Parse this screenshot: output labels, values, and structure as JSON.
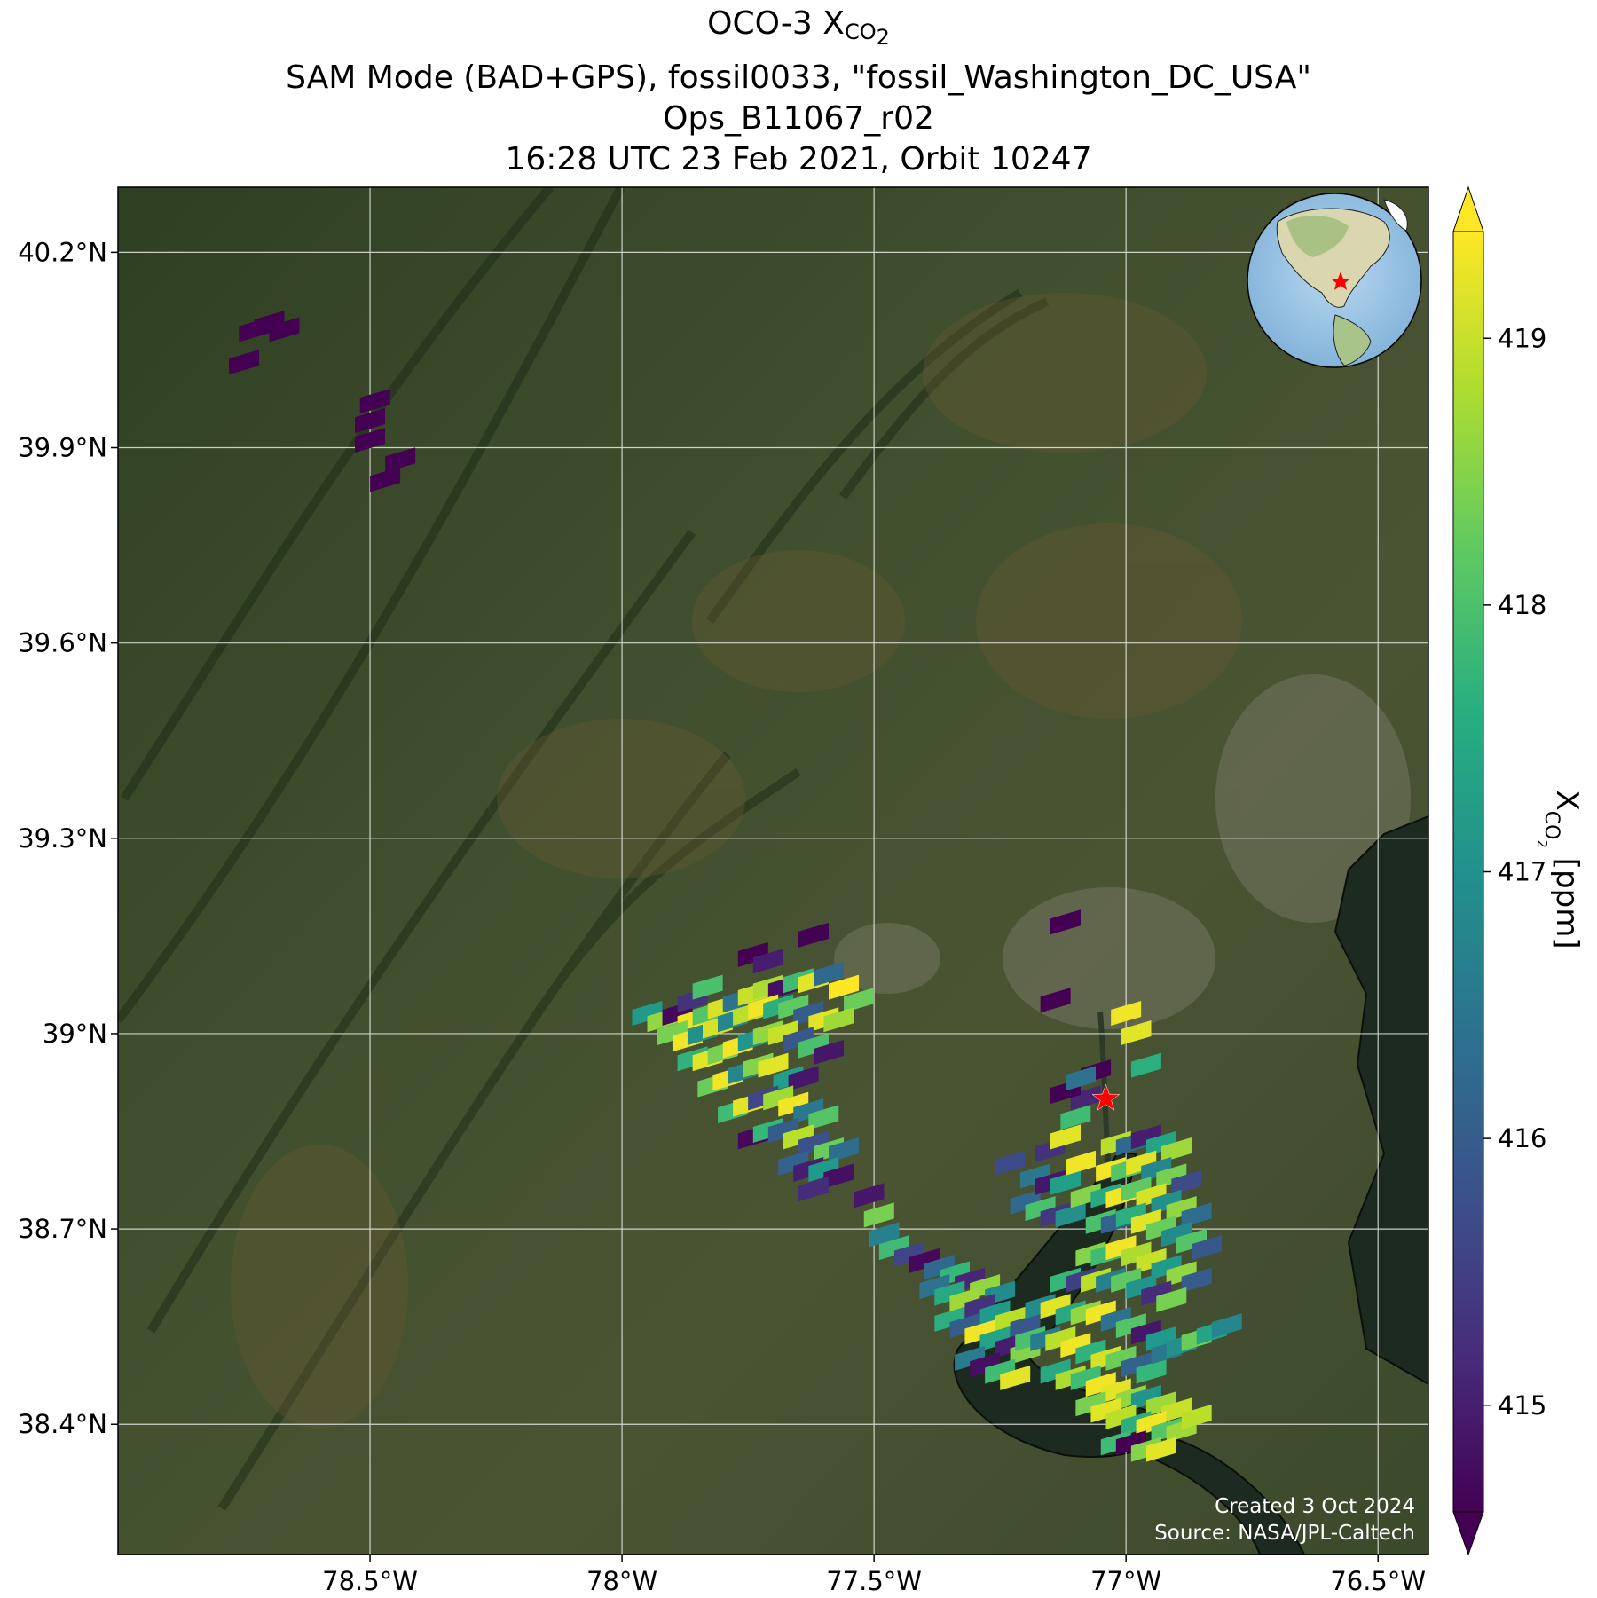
{
  "title": {
    "line1_prefix": "OCO-3 X",
    "line1_sub": "CO",
    "line1_sub2": "2",
    "line2": "SAM Mode (BAD+GPS), fossil0033, \"fossil_Washington_DC_USA\"",
    "line3": "Ops_B11067_r02",
    "line4": "16:28 UTC 23 Feb 2021, Orbit 10247"
  },
  "map": {
    "extent_lon": [
      -79.0,
      -76.4
    ],
    "extent_lat": [
      38.2,
      40.3
    ],
    "lon_ticks": [
      {
        "value": -78.5,
        "label": "78.5°W"
      },
      {
        "value": -78.0,
        "label": "78°W"
      },
      {
        "value": -77.5,
        "label": "77.5°W"
      },
      {
        "value": -77.0,
        "label": "77°W"
      },
      {
        "value": -76.5,
        "label": "76.5°W"
      }
    ],
    "lat_ticks": [
      {
        "value": 40.2,
        "label": "40.2°N"
      },
      {
        "value": 39.9,
        "label": "39.9°N"
      },
      {
        "value": 39.6,
        "label": "39.6°N"
      },
      {
        "value": 39.3,
        "label": "39.3°N"
      },
      {
        "value": 39.0,
        "label": "39°N"
      },
      {
        "value": 38.7,
        "label": "38.7°N"
      },
      {
        "value": 38.4,
        "label": "38.4°N"
      }
    ],
    "target_marker": {
      "lon": -77.04,
      "lat": 38.9,
      "color": "#ff0000",
      "icon": "star"
    },
    "credit_line1": "Created 3 Oct 2024",
    "credit_line2": "Source: NASA/JPL-Caltech",
    "inset": "globe-locator-icon"
  },
  "colorbar": {
    "min": 414.6,
    "max": 419.4,
    "ticks": [
      {
        "value": 415,
        "label": "415"
      },
      {
        "value": 416,
        "label": "416"
      },
      {
        "value": 417,
        "label": "417"
      },
      {
        "value": 418,
        "label": "418"
      },
      {
        "value": 419,
        "label": "419"
      }
    ],
    "label_prefix": "X",
    "label_sub": "CO",
    "label_sub2": "2",
    "label_suffix": " [ppm]",
    "colormap": "viridis",
    "extend": "both"
  },
  "chart_data": {
    "type": "heatmap",
    "name": "XCO2 soundings (ppm)",
    "points": [
      {
        "lon": -78.73,
        "lat": 40.08,
        "v": 414.5
      },
      {
        "lon": -78.7,
        "lat": 40.09,
        "v": 414.5
      },
      {
        "lon": -78.67,
        "lat": 40.08,
        "v": 414.5
      },
      {
        "lon": -78.75,
        "lat": 40.03,
        "v": 414.5
      },
      {
        "lon": -78.49,
        "lat": 39.97,
        "v": 414.5
      },
      {
        "lon": -78.5,
        "lat": 39.94,
        "v": 414.5
      },
      {
        "lon": -78.5,
        "lat": 39.91,
        "v": 414.5
      },
      {
        "lon": -78.44,
        "lat": 39.88,
        "v": 414.5
      },
      {
        "lon": -78.47,
        "lat": 39.85,
        "v": 414.5
      },
      {
        "lon": -77.62,
        "lat": 39.15,
        "v": 414.5
      },
      {
        "lon": -77.12,
        "lat": 39.17,
        "v": 414.5
      },
      {
        "lon": -77.14,
        "lat": 39.05,
        "v": 414.5
      },
      {
        "lon": -77.95,
        "lat": 39.03,
        "v": 417.2
      },
      {
        "lon": -77.92,
        "lat": 39.02,
        "v": 418.6
      },
      {
        "lon": -77.89,
        "lat": 39.03,
        "v": 414.7
      },
      {
        "lon": -77.86,
        "lat": 39.02,
        "v": 419.3
      },
      {
        "lon": -77.83,
        "lat": 39.03,
        "v": 418.1
      },
      {
        "lon": -77.8,
        "lat": 39.04,
        "v": 419.1
      },
      {
        "lon": -77.77,
        "lat": 39.05,
        "v": 416.4
      },
      {
        "lon": -77.74,
        "lat": 39.06,
        "v": 419.0
      },
      {
        "lon": -77.71,
        "lat": 39.07,
        "v": 418.8
      },
      {
        "lon": -77.68,
        "lat": 39.07,
        "v": 414.8
      },
      {
        "lon": -77.65,
        "lat": 39.08,
        "v": 417.9
      },
      {
        "lon": -77.62,
        "lat": 39.08,
        "v": 419.2
      },
      {
        "lon": -77.59,
        "lat": 39.09,
        "v": 416.2
      },
      {
        "lon": -77.56,
        "lat": 39.07,
        "v": 419.4
      },
      {
        "lon": -77.53,
        "lat": 39.05,
        "v": 418.3
      },
      {
        "lon": -77.74,
        "lat": 39.12,
        "v": 414.6
      },
      {
        "lon": -77.71,
        "lat": 39.11,
        "v": 415.0
      },
      {
        "lon": -77.86,
        "lat": 39.05,
        "v": 415.3
      },
      {
        "lon": -77.83,
        "lat": 39.07,
        "v": 418.0
      },
      {
        "lon": -77.9,
        "lat": 39.0,
        "v": 418.4
      },
      {
        "lon": -77.87,
        "lat": 38.99,
        "v": 419.3
      },
      {
        "lon": -77.84,
        "lat": 39.0,
        "v": 417.0
      },
      {
        "lon": -77.81,
        "lat": 39.01,
        "v": 419.1
      },
      {
        "lon": -77.78,
        "lat": 39.02,
        "v": 416.8
      },
      {
        "lon": -77.75,
        "lat": 39.03,
        "v": 418.9
      },
      {
        "lon": -77.72,
        "lat": 39.04,
        "v": 419.3
      },
      {
        "lon": -77.69,
        "lat": 39.04,
        "v": 417.6
      },
      {
        "lon": -77.66,
        "lat": 39.04,
        "v": 418.2
      },
      {
        "lon": -77.63,
        "lat": 39.03,
        "v": 416.0
      },
      {
        "lon": -77.6,
        "lat": 39.02,
        "v": 419.2
      },
      {
        "lon": -77.57,
        "lat": 39.02,
        "v": 418.7
      },
      {
        "lon": -77.86,
        "lat": 38.96,
        "v": 417.7
      },
      {
        "lon": -77.83,
        "lat": 38.96,
        "v": 419.2
      },
      {
        "lon": -77.8,
        "lat": 38.97,
        "v": 418.4
      },
      {
        "lon": -77.77,
        "lat": 38.98,
        "v": 419.3
      },
      {
        "lon": -77.74,
        "lat": 38.99,
        "v": 417.1
      },
      {
        "lon": -77.71,
        "lat": 39.0,
        "v": 418.6
      },
      {
        "lon": -77.68,
        "lat": 39.0,
        "v": 419.0
      },
      {
        "lon": -77.65,
        "lat": 38.99,
        "v": 415.9
      },
      {
        "lon": -77.62,
        "lat": 38.98,
        "v": 418.0
      },
      {
        "lon": -77.59,
        "lat": 38.97,
        "v": 414.9
      },
      {
        "lon": -77.82,
        "lat": 38.92,
        "v": 418.3
      },
      {
        "lon": -77.79,
        "lat": 38.93,
        "v": 419.3
      },
      {
        "lon": -77.76,
        "lat": 38.94,
        "v": 416.8
      },
      {
        "lon": -77.73,
        "lat": 38.95,
        "v": 418.5
      },
      {
        "lon": -77.7,
        "lat": 38.95,
        "v": 419.2
      },
      {
        "lon": -77.67,
        "lat": 38.93,
        "v": 417.3
      },
      {
        "lon": -77.64,
        "lat": 38.93,
        "v": 414.9
      },
      {
        "lon": -77.78,
        "lat": 38.88,
        "v": 417.9
      },
      {
        "lon": -77.75,
        "lat": 38.89,
        "v": 419.2
      },
      {
        "lon": -77.72,
        "lat": 38.9,
        "v": 415.6
      },
      {
        "lon": -77.69,
        "lat": 38.9,
        "v": 418.7
      },
      {
        "lon": -77.66,
        "lat": 38.89,
        "v": 419.3
      },
      {
        "lon": -77.63,
        "lat": 38.88,
        "v": 416.5
      },
      {
        "lon": -77.6,
        "lat": 38.87,
        "v": 418.1
      },
      {
        "lon": -77.74,
        "lat": 38.84,
        "v": 414.7
      },
      {
        "lon": -77.71,
        "lat": 38.85,
        "v": 417.8
      },
      {
        "lon": -77.68,
        "lat": 38.85,
        "v": 416.0
      },
      {
        "lon": -77.65,
        "lat": 38.84,
        "v": 418.9
      },
      {
        "lon": -77.62,
        "lat": 38.83,
        "v": 415.8
      },
      {
        "lon": -77.59,
        "lat": 38.82,
        "v": 418.3
      },
      {
        "lon": -77.56,
        "lat": 38.82,
        "v": 416.3
      },
      {
        "lon": -77.66,
        "lat": 38.8,
        "v": 416.1
      },
      {
        "lon": -77.63,
        "lat": 38.79,
        "v": 415.0
      },
      {
        "lon": -77.6,
        "lat": 38.79,
        "v": 417.2
      },
      {
        "lon": -77.57,
        "lat": 38.78,
        "v": 414.8
      },
      {
        "lon": -77.62,
        "lat": 38.76,
        "v": 415.2
      },
      {
        "lon": -77.51,
        "lat": 38.75,
        "v": 414.9
      },
      {
        "lon": -77.49,
        "lat": 38.72,
        "v": 418.4
      },
      {
        "lon": -77.48,
        "lat": 38.69,
        "v": 416.7
      },
      {
        "lon": -77.46,
        "lat": 38.67,
        "v": 417.9
      },
      {
        "lon": -77.43,
        "lat": 38.66,
        "v": 415.6
      },
      {
        "lon": -77.4,
        "lat": 38.65,
        "v": 414.7
      },
      {
        "lon": -77.37,
        "lat": 38.64,
        "v": 416.2
      },
      {
        "lon": -77.34,
        "lat": 38.63,
        "v": 417.8
      },
      {
        "lon": -77.31,
        "lat": 38.62,
        "v": 415.1
      },
      {
        "lon": -77.28,
        "lat": 38.61,
        "v": 418.6
      },
      {
        "lon": -77.25,
        "lat": 38.6,
        "v": 416.9
      },
      {
        "lon": -77.38,
        "lat": 38.61,
        "v": 416.4
      },
      {
        "lon": -77.35,
        "lat": 38.6,
        "v": 417.5
      },
      {
        "lon": -77.32,
        "lat": 38.59,
        "v": 418.7
      },
      {
        "lon": -77.29,
        "lat": 38.58,
        "v": 415.3
      },
      {
        "lon": -77.26,
        "lat": 38.57,
        "v": 417.2
      },
      {
        "lon": -77.23,
        "lat": 38.56,
        "v": 418.9
      },
      {
        "lon": -77.2,
        "lat": 38.55,
        "v": 415.9
      },
      {
        "lon": -77.35,
        "lat": 38.56,
        "v": 417.6
      },
      {
        "lon": -77.32,
        "lat": 38.55,
        "v": 416.0
      },
      {
        "lon": -77.29,
        "lat": 38.54,
        "v": 419.3
      },
      {
        "lon": -77.26,
        "lat": 38.53,
        "v": 417.4
      },
      {
        "lon": -77.23,
        "lat": 38.52,
        "v": 415.0
      },
      {
        "lon": -77.2,
        "lat": 38.51,
        "v": 418.5
      },
      {
        "lon": -77.31,
        "lat": 38.5,
        "v": 416.6
      },
      {
        "lon": -77.28,
        "lat": 38.49,
        "v": 414.8
      },
      {
        "lon": -77.25,
        "lat": 38.48,
        "v": 417.9
      },
      {
        "lon": -77.22,
        "lat": 38.47,
        "v": 419.2
      },
      {
        "lon": -77.2,
        "lat": 38.74,
        "v": 416.2
      },
      {
        "lon": -77.17,
        "lat": 38.73,
        "v": 418.0
      },
      {
        "lon": -77.14,
        "lat": 38.72,
        "v": 415.4
      },
      {
        "lon": -77.11,
        "lat": 38.72,
        "v": 417.0
      },
      {
        "lon": -77.08,
        "lat": 38.75,
        "v": 418.5
      },
      {
        "lon": -77.18,
        "lat": 38.78,
        "v": 416.5
      },
      {
        "lon": -77.15,
        "lat": 38.77,
        "v": 414.9
      },
      {
        "lon": -77.12,
        "lat": 38.77,
        "v": 417.3
      },
      {
        "lon": -77.09,
        "lat": 38.8,
        "v": 419.3
      },
      {
        "lon": -77.23,
        "lat": 38.8,
        "v": 415.7
      },
      {
        "lon": -77.15,
        "lat": 38.82,
        "v": 415.3
      },
      {
        "lon": -77.12,
        "lat": 38.84,
        "v": 419.2
      },
      {
        "lon": -77.1,
        "lat": 38.87,
        "v": 417.9
      },
      {
        "lon": -77.08,
        "lat": 38.9,
        "v": 415.1
      },
      {
        "lon": -77.06,
        "lat": 38.94,
        "v": 414.6
      },
      {
        "lon": -77.12,
        "lat": 38.91,
        "v": 414.5
      },
      {
        "lon": -77.09,
        "lat": 38.93,
        "v": 416.4
      },
      {
        "lon": -77.0,
        "lat": 39.03,
        "v": 419.3
      },
      {
        "lon": -76.98,
        "lat": 39.0,
        "v": 419.2
      },
      {
        "lon": -76.96,
        "lat": 38.95,
        "v": 417.6
      },
      {
        "lon": -77.02,
        "lat": 38.83,
        "v": 418.9
      },
      {
        "lon": -76.99,
        "lat": 38.83,
        "v": 416.2
      },
      {
        "lon": -76.96,
        "lat": 38.84,
        "v": 415.0
      },
      {
        "lon": -76.93,
        "lat": 38.83,
        "v": 417.4
      },
      {
        "lon": -76.9,
        "lat": 38.82,
        "v": 418.7
      },
      {
        "lon": -77.03,
        "lat": 38.79,
        "v": 419.3
      },
      {
        "lon": -77.0,
        "lat": 38.79,
        "v": 418.1
      },
      {
        "lon": -76.97,
        "lat": 38.8,
        "v": 419.2
      },
      {
        "lon": -76.94,
        "lat": 38.79,
        "v": 416.8
      },
      {
        "lon": -76.91,
        "lat": 38.78,
        "v": 418.4
      },
      {
        "lon": -76.88,
        "lat": 38.77,
        "v": 415.7
      },
      {
        "lon": -77.04,
        "lat": 38.75,
        "v": 417.5
      },
      {
        "lon": -77.01,
        "lat": 38.75,
        "v": 419.3
      },
      {
        "lon": -76.98,
        "lat": 38.76,
        "v": 418.2
      },
      {
        "lon": -76.95,
        "lat": 38.75,
        "v": 419.1
      },
      {
        "lon": -76.92,
        "lat": 38.74,
        "v": 417.0
      },
      {
        "lon": -76.89,
        "lat": 38.73,
        "v": 418.6
      },
      {
        "lon": -76.86,
        "lat": 38.72,
        "v": 416.3
      },
      {
        "lon": -77.05,
        "lat": 38.71,
        "v": 418.0
      },
      {
        "lon": -77.02,
        "lat": 38.71,
        "v": 416.1
      },
      {
        "lon": -76.99,
        "lat": 38.72,
        "v": 417.6
      },
      {
        "lon": -76.96,
        "lat": 38.71,
        "v": 419.2
      },
      {
        "lon": -76.93,
        "lat": 38.7,
        "v": 418.3
      },
      {
        "lon": -76.9,
        "lat": 38.69,
        "v": 416.9
      },
      {
        "lon": -76.87,
        "lat": 38.68,
        "v": 418.1
      },
      {
        "lon": -76.84,
        "lat": 38.67,
        "v": 415.9
      },
      {
        "lon": -77.07,
        "lat": 38.66,
        "v": 418.5
      },
      {
        "lon": -77.04,
        "lat": 38.66,
        "v": 417.9
      },
      {
        "lon": -77.01,
        "lat": 38.67,
        "v": 419.3
      },
      {
        "lon": -76.98,
        "lat": 38.66,
        "v": 418.8
      },
      {
        "lon": -76.95,
        "lat": 38.65,
        "v": 419.0
      },
      {
        "lon": -76.92,
        "lat": 38.64,
        "v": 417.2
      },
      {
        "lon": -76.89,
        "lat": 38.63,
        "v": 418.6
      },
      {
        "lon": -76.86,
        "lat": 38.62,
        "v": 416.0
      },
      {
        "lon": -77.12,
        "lat": 38.62,
        "v": 417.8
      },
      {
        "lon": -77.09,
        "lat": 38.62,
        "v": 415.5
      },
      {
        "lon": -77.06,
        "lat": 38.62,
        "v": 418.9
      },
      {
        "lon": -77.03,
        "lat": 38.62,
        "v": 416.7
      },
      {
        "lon": -77.0,
        "lat": 38.62,
        "v": 418.2
      },
      {
        "lon": -76.97,
        "lat": 38.61,
        "v": 417.1
      },
      {
        "lon": -76.94,
        "lat": 38.6,
        "v": 415.2
      },
      {
        "lon": -76.91,
        "lat": 38.59,
        "v": 418.4
      },
      {
        "lon": -77.17,
        "lat": 38.58,
        "v": 416.9
      },
      {
        "lon": -77.14,
        "lat": 38.58,
        "v": 419.2
      },
      {
        "lon": -77.11,
        "lat": 38.57,
        "v": 417.5
      },
      {
        "lon": -77.08,
        "lat": 38.57,
        "v": 418.6
      },
      {
        "lon": -77.05,
        "lat": 38.57,
        "v": 419.3
      },
      {
        "lon": -77.02,
        "lat": 38.56,
        "v": 416.4
      },
      {
        "lon": -76.99,
        "lat": 38.55,
        "v": 418.1
      },
      {
        "lon": -76.96,
        "lat": 38.54,
        "v": 414.9
      },
      {
        "lon": -76.93,
        "lat": 38.53,
        "v": 417.2
      },
      {
        "lon": -77.19,
        "lat": 38.53,
        "v": 418.0
      },
      {
        "lon": -77.16,
        "lat": 38.53,
        "v": 416.6
      },
      {
        "lon": -77.13,
        "lat": 38.53,
        "v": 418.9
      },
      {
        "lon": -77.1,
        "lat": 38.52,
        "v": 419.3
      },
      {
        "lon": -77.07,
        "lat": 38.51,
        "v": 417.7
      },
      {
        "lon": -77.04,
        "lat": 38.5,
        "v": 419.1
      },
      {
        "lon": -77.01,
        "lat": 38.5,
        "v": 418.3
      },
      {
        "lon": -76.98,
        "lat": 38.49,
        "v": 416.1
      },
      {
        "lon": -76.95,
        "lat": 38.48,
        "v": 417.8
      },
      {
        "lon": -76.92,
        "lat": 38.51,
        "v": 416.5
      },
      {
        "lon": -76.89,
        "lat": 38.52,
        "v": 417.0
      },
      {
        "lon": -76.86,
        "lat": 38.53,
        "v": 418.3
      },
      {
        "lon": -76.83,
        "lat": 38.54,
        "v": 417.4
      },
      {
        "lon": -76.8,
        "lat": 38.55,
        "v": 416.8
      },
      {
        "lon": -77.14,
        "lat": 38.48,
        "v": 417.5
      },
      {
        "lon": -77.11,
        "lat": 38.47,
        "v": 418.8
      },
      {
        "lon": -77.08,
        "lat": 38.47,
        "v": 417.9
      },
      {
        "lon": -77.05,
        "lat": 38.46,
        "v": 419.3
      },
      {
        "lon": -77.02,
        "lat": 38.45,
        "v": 419.2
      },
      {
        "lon": -76.99,
        "lat": 38.44,
        "v": 418.6
      },
      {
        "lon": -76.96,
        "lat": 38.44,
        "v": 417.1
      },
      {
        "lon": -76.93,
        "lat": 38.43,
        "v": 418.7
      },
      {
        "lon": -76.9,
        "lat": 38.42,
        "v": 419.0
      },
      {
        "lon": -77.07,
        "lat": 38.43,
        "v": 418.4
      },
      {
        "lon": -77.04,
        "lat": 38.42,
        "v": 419.2
      },
      {
        "lon": -77.01,
        "lat": 38.41,
        "v": 418.9
      },
      {
        "lon": -76.98,
        "lat": 38.4,
        "v": 417.6
      },
      {
        "lon": -76.95,
        "lat": 38.4,
        "v": 419.3
      },
      {
        "lon": -76.92,
        "lat": 38.39,
        "v": 418.1
      },
      {
        "lon": -76.89,
        "lat": 38.39,
        "v": 418.7
      },
      {
        "lon": -76.86,
        "lat": 38.41,
        "v": 418.9
      },
      {
        "lon": -77.02,
        "lat": 38.37,
        "v": 417.9
      },
      {
        "lon": -76.99,
        "lat": 38.37,
        "v": 414.6
      },
      {
        "lon": -76.96,
        "lat": 38.36,
        "v": 418.5
      },
      {
        "lon": -76.93,
        "lat": 38.36,
        "v": 419.2
      }
    ]
  }
}
